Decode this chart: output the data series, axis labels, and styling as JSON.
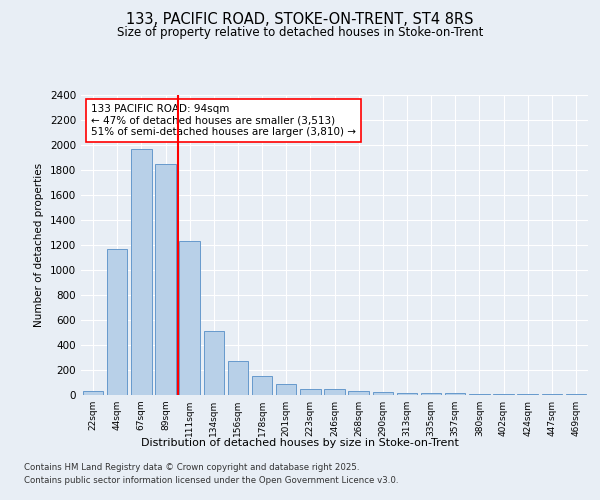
{
  "title1": "133, PACIFIC ROAD, STOKE-ON-TRENT, ST4 8RS",
  "title2": "Size of property relative to detached houses in Stoke-on-Trent",
  "xlabel": "Distribution of detached houses by size in Stoke-on-Trent",
  "ylabel": "Number of detached properties",
  "categories": [
    "22sqm",
    "44sqm",
    "67sqm",
    "89sqm",
    "111sqm",
    "134sqm",
    "156sqm",
    "178sqm",
    "201sqm",
    "223sqm",
    "246sqm",
    "268sqm",
    "290sqm",
    "313sqm",
    "335sqm",
    "357sqm",
    "380sqm",
    "402sqm",
    "424sqm",
    "447sqm",
    "469sqm"
  ],
  "values": [
    30,
    1170,
    1970,
    1850,
    1230,
    510,
    270,
    155,
    90,
    50,
    45,
    35,
    25,
    20,
    20,
    15,
    5,
    5,
    5,
    5,
    5
  ],
  "bar_color": "#b8d0e8",
  "bar_edge_color": "#6699cc",
  "red_line_index": 3,
  "annotation_text": "133 PACIFIC ROAD: 94sqm\n← 47% of detached houses are smaller (3,513)\n51% of semi-detached houses are larger (3,810) →",
  "ylim": [
    0,
    2400
  ],
  "yticks": [
    0,
    200,
    400,
    600,
    800,
    1000,
    1200,
    1400,
    1600,
    1800,
    2000,
    2200,
    2400
  ],
  "background_color": "#e8eef5",
  "plot_bg_color": "#e8eef5",
  "grid_color": "#ffffff",
  "footer1": "Contains HM Land Registry data © Crown copyright and database right 2025.",
  "footer2": "Contains public sector information licensed under the Open Government Licence v3.0."
}
